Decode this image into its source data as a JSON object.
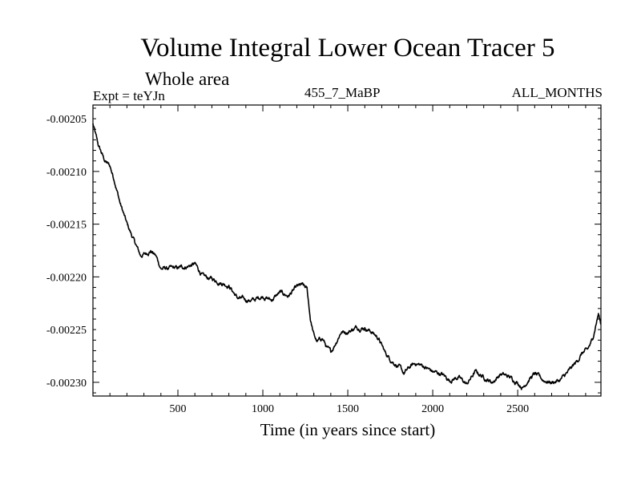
{
  "chart_data": {
    "type": "line",
    "title": "Volume Integral Lower Ocean Tracer 5",
    "subtitle": "Whole area",
    "experiment_label": "Expt = teYJn",
    "run_label": "455_7_MaBP",
    "months_label": "ALL_MONTHS",
    "xlabel": "Time (in years since start)",
    "ylabel": "",
    "xlim": [
      0,
      2990
    ],
    "ylim": [
      -0.002313,
      -0.002037
    ],
    "xticks": [
      500,
      1000,
      1500,
      2000,
      2500
    ],
    "xtick_labels": [
      "500",
      "1000",
      "1500",
      "2000",
      "2500"
    ],
    "yticks": [
      -0.00205,
      -0.0021,
      -0.00215,
      -0.0022,
      -0.00225,
      -0.0023
    ],
    "ytick_labels": [
      "-0.00205",
      "-0.00210",
      "-0.00215",
      "-0.00220",
      "-0.00225",
      "-0.00230"
    ],
    "line_color": "#000000",
    "series": [
      {
        "name": "Volume Integral Lower Ocean Tracer 5",
        "x": [
          0,
          30,
          70,
          100,
          130,
          160,
          200,
          240,
          280,
          310,
          340,
          370,
          400,
          450,
          500,
          550,
          600,
          650,
          700,
          750,
          800,
          850,
          900,
          950,
          1000,
          1050,
          1100,
          1150,
          1200,
          1230,
          1260,
          1280,
          1300,
          1320,
          1350,
          1380,
          1400,
          1430,
          1460,
          1500,
          1550,
          1600,
          1640,
          1680,
          1720,
          1750,
          1800,
          1830,
          1870,
          1900,
          1950,
          2000,
          2050,
          2100,
          2150,
          2200,
          2250,
          2300,
          2350,
          2400,
          2450,
          2500,
          2530,
          2560,
          2600,
          2650,
          2700,
          2750,
          2800,
          2850,
          2880,
          2910,
          2940,
          2960,
          2975,
          2990
        ],
        "values": [
          -0.002055,
          -0.002075,
          -0.00209,
          -0.002095,
          -0.00211,
          -0.00213,
          -0.00215,
          -0.002165,
          -0.00218,
          -0.002178,
          -0.002175,
          -0.00218,
          -0.002192,
          -0.002192,
          -0.002192,
          -0.00219,
          -0.002188,
          -0.0022,
          -0.002202,
          -0.002205,
          -0.002208,
          -0.00222,
          -0.002222,
          -0.002222,
          -0.002218,
          -0.002222,
          -0.002215,
          -0.002218,
          -0.00221,
          -0.002208,
          -0.002212,
          -0.00224,
          -0.002255,
          -0.002262,
          -0.002258,
          -0.002268,
          -0.002272,
          -0.002262,
          -0.002252,
          -0.002252,
          -0.002248,
          -0.002248,
          -0.002252,
          -0.002258,
          -0.002272,
          -0.002278,
          -0.002285,
          -0.002292,
          -0.002285,
          -0.002282,
          -0.002285,
          -0.00229,
          -0.002292,
          -0.002298,
          -0.002295,
          -0.002302,
          -0.00229,
          -0.002295,
          -0.0023,
          -0.002292,
          -0.002295,
          -0.0023,
          -0.002305,
          -0.002298,
          -0.002292,
          -0.002298,
          -0.0023,
          -0.002298,
          -0.00229,
          -0.00228,
          -0.002272,
          -0.00227,
          -0.00226,
          -0.002245,
          -0.002235,
          -0.002245
        ]
      }
    ]
  }
}
